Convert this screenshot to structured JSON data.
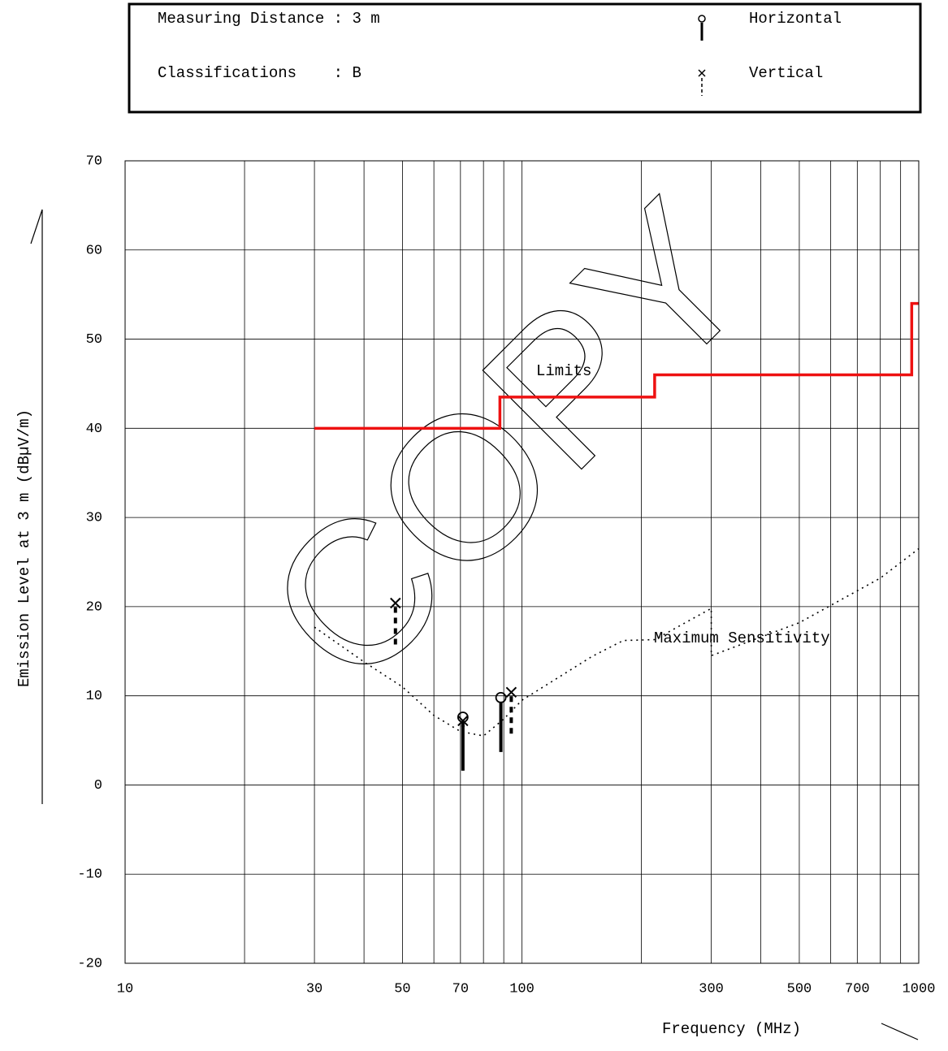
{
  "chart_data": {
    "type": "emission",
    "info": [
      "Measuring Distance : 3 m",
      "Classifications    : B"
    ],
    "ylabel": "Emission Level at 3 m (dBµV/m)",
    "xlabel": "Frequency (MHz)",
    "watermark": "COPY",
    "xscale": "log",
    "xlim": [
      10,
      1000
    ],
    "ylim": [
      -20,
      70
    ],
    "xticks": [
      10,
      30,
      50,
      70,
      100,
      300,
      500,
      700,
      1000
    ],
    "xgrid": [
      20,
      40,
      60,
      80,
      90,
      200,
      400,
      600,
      800,
      900
    ],
    "yticks": [
      -20,
      -10,
      0,
      10,
      20,
      30,
      40,
      50,
      60,
      70
    ],
    "grid": true,
    "lines": [
      {
        "name": "Limits",
        "color": "#ee1111",
        "style": "solid",
        "x": [
          30,
          88,
          88,
          216,
          216,
          960,
          960,
          1000
        ],
        "values": [
          40,
          40,
          43.5,
          43.5,
          46,
          46,
          54,
          54
        ]
      },
      {
        "name": "Maximum Sensitivity",
        "color": "#000000",
        "style": "dotted",
        "x": [
          30,
          40,
          50,
          60,
          70,
          80,
          90,
          100,
          150,
          180,
          216,
          300,
          300,
          500,
          800,
          1000
        ],
        "values": [
          17.7,
          13.8,
          11.0,
          7.8,
          6.0,
          5.5,
          7.4,
          9.5,
          14.4,
          16.2,
          16.3,
          19.8,
          14.5,
          18.2,
          23.2,
          26.5
        ]
      }
    ],
    "series": [
      {
        "name": "Horizontal",
        "marker": "circle",
        "color": "#000000",
        "x": [
          71,
          88.5
        ],
        "values": [
          7.6,
          9.8
        ],
        "lows": [
          1.6,
          3.7
        ]
      },
      {
        "name": "Vertical",
        "marker": "cross",
        "color": "#000000",
        "x": [
          48,
          71,
          94
        ],
        "values": [
          20.4,
          7.2,
          10.4
        ],
        "lows": [
          15.6,
          6.5,
          5.6
        ]
      }
    ]
  }
}
